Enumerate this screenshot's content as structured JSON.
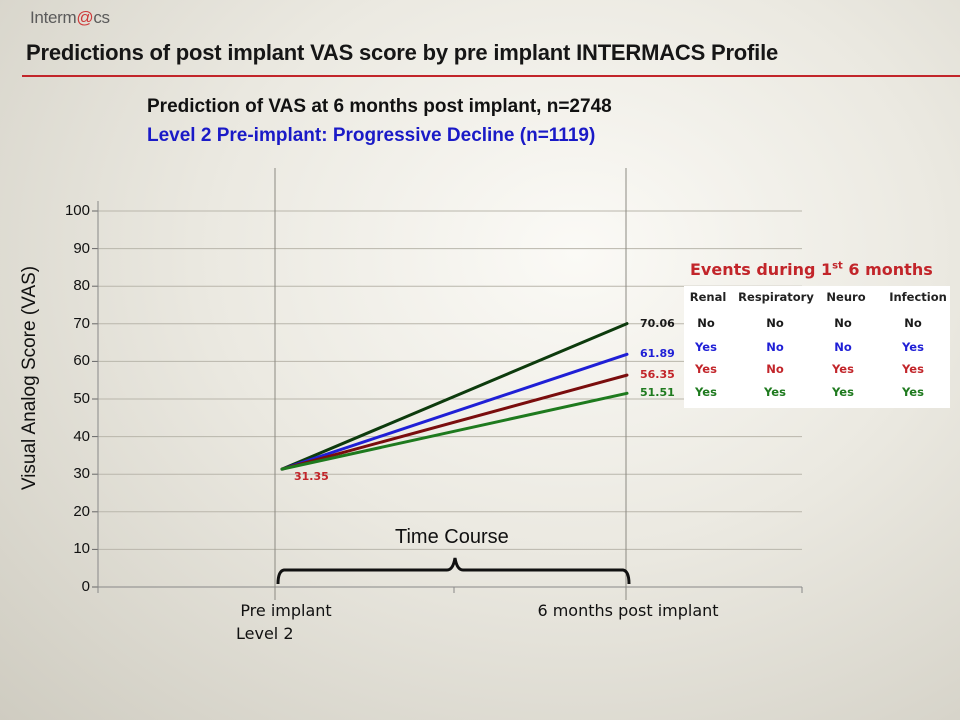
{
  "header": {
    "logo_pre": "Interm",
    "logo_accent": "@",
    "logo_post": "cs",
    "title": "Predictions of post implant VAS score by pre implant INTERMACS Profile"
  },
  "subtitle": {
    "line1": "Prediction of VAS at 6 months post implant, n=2748",
    "line2": "Level 2 Pre-implant:  Progressive Decline (n=1119)"
  },
  "chart_data": {
    "type": "line",
    "ylabel": "Visual Analog Score (VAS)",
    "xlabel": "",
    "ylim": [
      0,
      100
    ],
    "yticks": [
      "0",
      "10",
      "20",
      "30",
      "40",
      "50",
      "60",
      "70",
      "80",
      "90",
      "100"
    ],
    "categories": [
      "Pre implant",
      "6 months post implant"
    ],
    "grid": true,
    "start_value": 31.35,
    "start_label": "31.35",
    "start_label_color": "#c2252a",
    "series": [
      {
        "values": [
          31.35,
          70.06
        ],
        "label": "70.06",
        "color": "#0d3b0d",
        "label_color": "#1a1a1a"
      },
      {
        "values": [
          31.35,
          61.89
        ],
        "label": "61.89",
        "color": "#1f1fd6",
        "label_color": "#1f1fd6"
      },
      {
        "values": [
          31.35,
          56.35
        ],
        "label": "56.35",
        "color": "#7a0d0d",
        "label_color": "#c2252a"
      },
      {
        "values": [
          31.35,
          51.51
        ],
        "label": "51.51",
        "color": "#1e7a1e",
        "label_color": "#1e7a1e"
      }
    ],
    "annotations": {
      "level_label": "Level 2",
      "time_course": "Time Course"
    }
  },
  "events": {
    "title": "Events during 1",
    "title_sup": "st",
    "title_post": " 6 months",
    "columns": [
      "Renal",
      "Respiratory",
      "Neuro",
      "Infection"
    ],
    "rows": [
      {
        "color": "#1a1a1a",
        "values": [
          "No",
          "No",
          "No",
          "No"
        ]
      },
      {
        "color": "#1f1fd6",
        "values": [
          "Yes",
          "No",
          "No",
          "Yes"
        ]
      },
      {
        "color": "#c2252a",
        "values": [
          "Yes",
          "No",
          "Yes",
          "Yes"
        ]
      },
      {
        "color": "#1e7a1e",
        "values": [
          "Yes",
          "Yes",
          "Yes",
          "Yes"
        ]
      }
    ]
  }
}
